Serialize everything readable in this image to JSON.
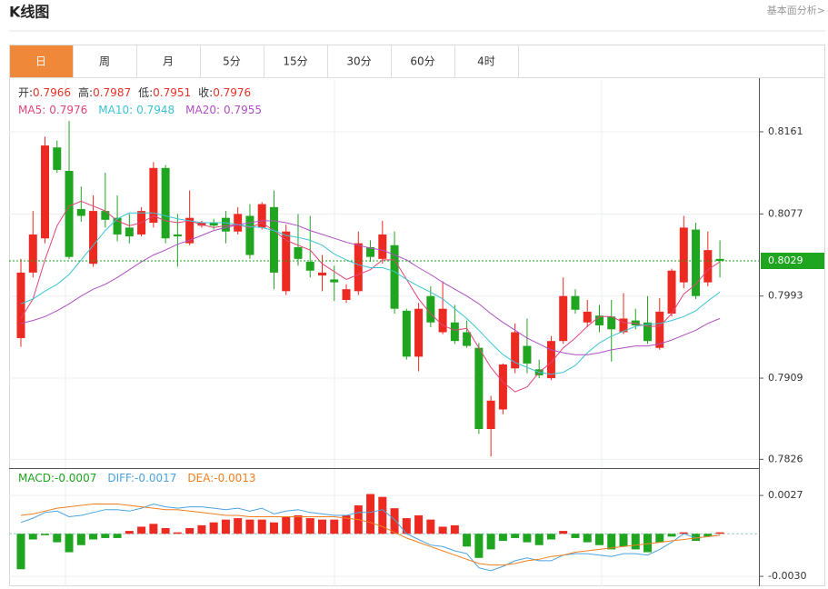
{
  "header": {
    "title": "K线图",
    "link": "基本面分析>"
  },
  "tabs": {
    "items": [
      "日",
      "周",
      "月",
      "5分",
      "15分",
      "30分",
      "60分",
      "4时"
    ],
    "active": 0
  },
  "chart_data": [
    {
      "type": "candlestick",
      "info": [
        {
          "label": "开:",
          "value": 0.7966
        },
        {
          "label": "高:",
          "value": 0.7987
        },
        {
          "label": "低:",
          "value": 0.7951
        },
        {
          "label": "收:",
          "value": 0.7976
        }
      ],
      "up_color": "#ec2a22",
      "down_color": "#1fa51f",
      "open": [
        0.795,
        0.8017,
        0.8052,
        0.8145,
        0.8121,
        0.8082,
        0.8026,
        0.808,
        0.8073,
        0.8063,
        0.8056,
        0.8068,
        0.8124,
        0.8056,
        0.8047,
        0.8065,
        0.8068,
        0.8073,
        0.8059,
        0.8075,
        0.8063,
        0.8084,
        0.7998,
        0.8043,
        0.8028,
        0.8014,
        0.801,
        0.7989,
        0.7998,
        0.8043,
        0.8031,
        0.8045,
        0.7978,
        0.7931,
        0.7993,
        0.7956,
        0.7966,
        0.7956,
        0.794,
        0.7857,
        0.7877,
        0.7919,
        0.7942,
        0.7918,
        0.7909,
        0.7947,
        0.7993,
        0.7966,
        0.7973,
        0.7972,
        0.7956,
        0.7968,
        0.7966,
        0.794,
        0.7975,
        0.8007,
        0.8061,
        0.8007,
        0.8031
      ],
      "high": [
        0.8031,
        0.808,
        0.8156,
        0.8152,
        0.8172,
        0.8105,
        0.8096,
        0.8119,
        0.8096,
        0.8077,
        0.8084,
        0.813,
        0.8127,
        0.8077,
        0.8101,
        0.807,
        0.8072,
        0.808,
        0.8084,
        0.8087,
        0.8089,
        0.8101,
        0.8066,
        0.8077,
        0.8075,
        0.8035,
        0.8024,
        0.8005,
        0.8059,
        0.805,
        0.807,
        0.8059,
        0.798,
        0.7986,
        0.8003,
        0.8008,
        0.7984,
        0.7968,
        0.7945,
        0.7891,
        0.7924,
        0.7965,
        0.797,
        0.7928,
        0.7952,
        0.8012,
        0.8,
        0.7989,
        0.7984,
        0.7989,
        0.7996,
        0.798,
        0.7993,
        0.7991,
        0.8021,
        0.8075,
        0.8068,
        0.8059,
        0.805
      ],
      "low": [
        0.7941,
        0.8012,
        0.8047,
        0.8119,
        0.8031,
        0.8069,
        0.8023,
        0.8063,
        0.8049,
        0.8047,
        0.8054,
        0.8063,
        0.8047,
        0.8023,
        0.8045,
        0.8063,
        0.8061,
        0.8047,
        0.8056,
        0.8031,
        0.8061,
        0.8,
        0.7994,
        0.8024,
        0.8012,
        0.7998,
        0.7988,
        0.7986,
        0.7994,
        0.8028,
        0.8026,
        0.7975,
        0.7928,
        0.7916,
        0.7961,
        0.7954,
        0.7944,
        0.794,
        0.7852,
        0.7829,
        0.7872,
        0.7914,
        0.7914,
        0.7909,
        0.7907,
        0.7944,
        0.7975,
        0.7961,
        0.7956,
        0.7926,
        0.7954,
        0.7959,
        0.7944,
        0.7938,
        0.7972,
        0.8001,
        0.799,
        0.8003,
        0.8012
      ],
      "close": [
        0.8017,
        0.8056,
        0.8147,
        0.8122,
        0.8033,
        0.8075,
        0.808,
        0.8071,
        0.8056,
        0.8054,
        0.808,
        0.8124,
        0.8052,
        0.8054,
        0.8073,
        0.8068,
        0.8065,
        0.8059,
        0.8077,
        0.8035,
        0.8087,
        0.8017,
        0.8059,
        0.8031,
        0.8019,
        0.8017,
        0.8007,
        0.8,
        0.8047,
        0.8033,
        0.8056,
        0.798,
        0.7931,
        0.798,
        0.7966,
        0.798,
        0.7947,
        0.7942,
        0.7857,
        0.7886,
        0.7923,
        0.7956,
        0.7924,
        0.7912,
        0.7947,
        0.7993,
        0.7979,
        0.7977,
        0.7963,
        0.7959,
        0.797,
        0.7963,
        0.7947,
        0.7977,
        0.8019,
        0.8063,
        0.7993,
        0.804,
        0.8029
      ],
      "series": [
        {
          "name": "MA5:",
          "color": "#e0457b",
          "legend_value": 0.7976,
          "values": [
            0.797,
            0.799,
            0.803,
            0.8065,
            0.8085,
            0.809,
            0.8085,
            0.808,
            0.807,
            0.8065,
            0.8068,
            0.8075,
            0.807,
            0.8068,
            0.807,
            0.8066,
            0.8063,
            0.8065,
            0.8066,
            0.8063,
            0.8068,
            0.806,
            0.805,
            0.8045,
            0.804,
            0.8026,
            0.8018,
            0.801,
            0.8015,
            0.802,
            0.803,
            0.803,
            0.801,
            0.799,
            0.7975,
            0.7963,
            0.7958,
            0.796,
            0.794,
            0.792,
            0.7905,
            0.7895,
            0.79,
            0.7915,
            0.7925,
            0.794,
            0.795,
            0.7962,
            0.7972,
            0.7972,
            0.7966,
            0.7965,
            0.7962,
            0.7962,
            0.7975,
            0.7995,
            0.8005,
            0.802,
            0.8028
          ]
        },
        {
          "name": "MA10:",
          "color": "#3cc4d4",
          "legend_value": 0.7948,
          "values": [
            0.7985,
            0.799,
            0.7998,
            0.8005,
            0.8015,
            0.803,
            0.8045,
            0.806,
            0.8072,
            0.8078,
            0.8078,
            0.8078,
            0.8075,
            0.8072,
            0.807,
            0.8068,
            0.8068,
            0.8068,
            0.8066,
            0.8064,
            0.8063,
            0.806,
            0.8055,
            0.8053,
            0.805,
            0.8045,
            0.8036,
            0.803,
            0.8025,
            0.8022,
            0.8022,
            0.8018,
            0.801,
            0.8003,
            0.7997,
            0.799,
            0.798,
            0.797,
            0.7958,
            0.7945,
            0.7933,
            0.7925,
            0.792,
            0.7915,
            0.7913,
            0.7915,
            0.7922,
            0.7935,
            0.7945,
            0.7952,
            0.7957,
            0.7962,
            0.7964,
            0.7965,
            0.7968,
            0.7972,
            0.7978,
            0.7988,
            0.7997
          ]
        },
        {
          "name": "MA20:",
          "color": "#b04fc4",
          "legend_value": 0.7955,
          "values": [
            0.7965,
            0.7968,
            0.7972,
            0.7978,
            0.7985,
            0.7993,
            0.8,
            0.8005,
            0.8012,
            0.802,
            0.8028,
            0.8035,
            0.804,
            0.8046,
            0.805,
            0.8055,
            0.806,
            0.8063,
            0.8066,
            0.8068,
            0.807,
            0.807,
            0.8068,
            0.8065,
            0.806,
            0.8056,
            0.8052,
            0.8048,
            0.8045,
            0.8042,
            0.804,
            0.8035,
            0.803,
            0.8022,
            0.8015,
            0.8007,
            0.8,
            0.7993,
            0.7985,
            0.7975,
            0.7966,
            0.7958,
            0.795,
            0.7944,
            0.7938,
            0.7935,
            0.7933,
            0.7933,
            0.7935,
            0.7938,
            0.794,
            0.7942,
            0.7942,
            0.7944,
            0.7948,
            0.7953,
            0.7958,
            0.7965,
            0.797
          ]
        }
      ],
      "ylim": [
        0.7817,
        0.8214
      ],
      "yticks": [
        0.7826,
        0.7909,
        0.7993,
        0.8077,
        0.8161
      ],
      "grid": true,
      "last_price": 0.8029,
      "last_price_color": "#1fa51f"
    },
    {
      "type": "macd",
      "up_color": "#ec2a22",
      "down_color": "#1fa51f",
      "series": [
        {
          "name": "MACD:",
          "kind": "bar",
          "color": "#1fa51f",
          "legend_value": -0.0007,
          "values": [
            -0.0025,
            -0.0004,
            -0.0001,
            -0.0006,
            -0.0013,
            -0.0008,
            -0.0004,
            -0.0003,
            -0.0003,
            0.0002,
            0.0005,
            0.0007,
            0.0004,
            0.0001,
            0.0004,
            0.0006,
            0.0008,
            0.001,
            0.0011,
            0.001,
            0.001,
            0.0008,
            0.0012,
            0.0013,
            0.0011,
            0.001,
            0.001,
            0.0013,
            0.002,
            0.0028,
            0.0026,
            0.0018,
            0.0011,
            0.0013,
            0.001,
            0.0005,
            0.0006,
            -0.0009,
            -0.0017,
            -0.0011,
            -0.0005,
            -0.0003,
            -0.0006,
            -0.0008,
            -0.0004,
            0.0002,
            -0.0003,
            -0.0006,
            -0.0008,
            -0.0011,
            -0.0009,
            -0.0011,
            -0.0013,
            -0.0006,
            -0.0002,
            0.0001,
            -0.0005,
            -0.0002,
            0.0001
          ]
        },
        {
          "name": "DIFF:",
          "kind": "line",
          "color": "#4aa3e0",
          "legend_value": -0.0017,
          "values": [
            0.0008,
            0.0011,
            0.0015,
            0.0016,
            0.0012,
            0.0013,
            0.0015,
            0.0017,
            0.0017,
            0.0016,
            0.0018,
            0.0021,
            0.0019,
            0.0018,
            0.0019,
            0.0019,
            0.0018,
            0.0017,
            0.0018,
            0.0016,
            0.0018,
            0.0014,
            0.0016,
            0.0017,
            0.0015,
            0.0014,
            0.0013,
            0.0013,
            0.0015,
            0.0015,
            0.0017,
            0.001,
            0.0,
            -0.0004,
            -0.0008,
            -0.0009,
            -0.0012,
            -0.0014,
            -0.0024,
            -0.0026,
            -0.0023,
            -0.0019,
            -0.0017,
            -0.0019,
            -0.0019,
            -0.0015,
            -0.0014,
            -0.0014,
            -0.0015,
            -0.0016,
            -0.0014,
            -0.0014,
            -0.0015,
            -0.0011,
            -0.0006,
            0.0,
            -0.0003,
            -0.0002,
            -0.0001
          ]
        },
        {
          "name": "DEA:",
          "kind": "line",
          "color": "#f07f1f",
          "legend_value": -0.0013,
          "values": [
            0.0013,
            0.0014,
            0.0016,
            0.0018,
            0.0019,
            0.002,
            0.0021,
            0.0021,
            0.0021,
            0.002,
            0.0019,
            0.0018,
            0.0017,
            0.0017,
            0.0016,
            0.0015,
            0.0014,
            0.0013,
            0.0013,
            0.0012,
            0.0012,
            0.0012,
            0.0012,
            0.0012,
            0.0012,
            0.0012,
            0.0012,
            0.0011,
            0.001,
            0.0008,
            0.0005,
            0.0001,
            -0.0003,
            -0.0006,
            -0.0009,
            -0.0012,
            -0.0015,
            -0.0018,
            -0.0021,
            -0.0022,
            -0.0022,
            -0.0021,
            -0.0019,
            -0.0018,
            -0.0016,
            -0.0015,
            -0.0013,
            -0.0012,
            -0.0011,
            -0.001,
            -0.0009,
            -0.0008,
            -0.0007,
            -0.0006,
            -0.0005,
            -0.0004,
            -0.0003,
            -0.0002,
            -0.0001
          ]
        }
      ],
      "ylim": [
        -0.0037,
        0.0045
      ],
      "yticks": [
        {
          "value": -0.003,
          "label": "-0.0030"
        },
        0.0027
      ],
      "grid": true
    }
  ]
}
